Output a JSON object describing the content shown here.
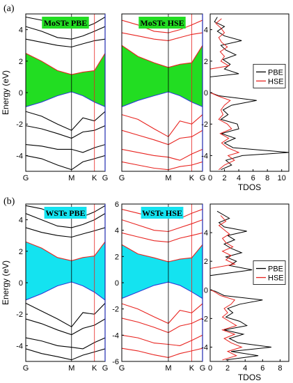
{
  "colors": {
    "pbe_line": "#000000",
    "hse_line": "#e8231f",
    "gap_fill_mo": "#22dd22",
    "gap_fill_w": "#14e3f0",
    "vbm_line": "#2a3ad8",
    "axis_blue": "#1e2ab0",
    "label_box_mo": "#22dd22",
    "label_box_w": "#14e3f0"
  },
  "icons": {
    "legend_pbe": "line-swatch-black",
    "legend_hse": "line-swatch-red"
  },
  "chart_data": [
    {
      "panel": "(a)",
      "type": "line",
      "subtype": "band-structure",
      "label_box": "MoSTe PBE",
      "functional": "PBE",
      "ylabel": "Energy (eV)",
      "ylim": [
        -5,
        5
      ],
      "yticks": [
        "-4",
        "-2",
        "0",
        "2",
        "4"
      ],
      "kpoints": [
        "G",
        "M",
        "K",
        "G"
      ],
      "kpoint_positions": [
        0,
        0.577,
        0.866,
        1.0
      ],
      "gap": {
        "vbm": 0.0,
        "cbm": 1.1,
        "filled": true,
        "fill_color_key": "gap_fill_mo"
      },
      "series": [
        {
          "values": [
            -0.9,
            -0.6,
            -0.2,
            0.05,
            -0.2,
            -0.6,
            -0.9
          ],
          "role": "valence-top"
        },
        {
          "values": [
            2.5,
            2.0,
            1.4,
            1.15,
            1.3,
            1.4,
            2.5
          ],
          "role": "conduction-bottom"
        },
        {
          "values": [
            -1.2,
            -1.5,
            -2.0,
            -2.4,
            -1.6,
            -1.8,
            -1.2
          ]
        },
        {
          "values": [
            -2.1,
            -2.3,
            -2.6,
            -2.9,
            -2.5,
            -2.4,
            -2.1
          ]
        },
        {
          "values": [
            -3.3,
            -3.4,
            -3.6,
            -3.6,
            -3.8,
            -3.5,
            -3.3
          ]
        },
        {
          "values": [
            -4.0,
            -4.2,
            -4.6,
            -4.9,
            -4.4,
            -4.2,
            -4.0
          ]
        },
        {
          "values": [
            3.4,
            3.2,
            3.0,
            2.9,
            3.1,
            3.3,
            3.4
          ]
        },
        {
          "values": [
            4.2,
            3.9,
            3.5,
            3.4,
            3.6,
            3.9,
            4.2
          ]
        },
        {
          "values": [
            4.8,
            4.6,
            4.2,
            4.3,
            4.1,
            4.4,
            4.8
          ]
        }
      ],
      "x": [
        0,
        0.2,
        0.4,
        0.577,
        0.72,
        0.866,
        1.0
      ]
    },
    {
      "panel": "(a)",
      "type": "line",
      "subtype": "band-structure",
      "label_box": "MoSTe HSE",
      "functional": "HSE",
      "ylim": [
        -5,
        5
      ],
      "kpoints": [
        "G",
        "M",
        "K",
        "G"
      ],
      "kpoint_positions": [
        0,
        0.577,
        0.866,
        1.0
      ],
      "gap": {
        "vbm": 0.0,
        "cbm": 1.6,
        "filled": true,
        "fill_color_key": "gap_fill_mo"
      },
      "series": [
        {
          "values": [
            -0.9,
            -0.5,
            -0.2,
            0.05,
            -0.2,
            -0.6,
            -0.9
          ],
          "role": "valence-top"
        },
        {
          "values": [
            3.0,
            2.3,
            1.9,
            1.6,
            1.8,
            1.9,
            3.0
          ],
          "role": "conduction-bottom"
        },
        {
          "values": [
            -1.4,
            -1.7,
            -2.3,
            -2.8,
            -1.8,
            -2.0,
            -1.4
          ]
        },
        {
          "values": [
            -2.4,
            -2.7,
            -3.0,
            -3.3,
            -2.9,
            -2.8,
            -2.4
          ]
        },
        {
          "values": [
            -3.6,
            -3.8,
            -4.0,
            -4.1,
            -4.3,
            -3.9,
            -3.6
          ]
        },
        {
          "values": [
            -4.4,
            -4.6,
            -4.8,
            -4.9,
            -4.7,
            -4.6,
            -4.4
          ]
        },
        {
          "values": [
            3.8,
            3.6,
            3.4,
            3.3,
            3.5,
            3.7,
            3.8
          ]
        },
        {
          "values": [
            4.6,
            4.3,
            3.9,
            3.8,
            4.0,
            4.3,
            4.6
          ]
        }
      ],
      "x": [
        0,
        0.2,
        0.4,
        0.577,
        0.72,
        0.866,
        1.0
      ]
    },
    {
      "panel": "(a)",
      "type": "line",
      "subtype": "density-of-states",
      "xlabel": "TDOS",
      "xlim": [
        0,
        11
      ],
      "xticks": [
        "0",
        "2",
        "4",
        "6",
        "8",
        "10"
      ],
      "ylim": [
        -5,
        5
      ],
      "legend": {
        "entries": [
          "PBE",
          "HSE"
        ],
        "placement": "right"
      },
      "series": [
        {
          "name": "PBE",
          "color_key": "pbe_line",
          "energy": [
            -4.9,
            -4.6,
            -4.3,
            -4.0,
            -3.8,
            -3.5,
            -3.2,
            -2.9,
            -2.6,
            -2.3,
            -2.0,
            -1.7,
            -1.4,
            -1.1,
            -0.8,
            -0.5,
            -0.2,
            0.0,
            0.5,
            1.0,
            1.2,
            1.5,
            1.8,
            2.1,
            2.4,
            2.7,
            3.0,
            3.3,
            3.6,
            3.9,
            4.2,
            4.5,
            4.8
          ],
          "values": [
            1.5,
            3.0,
            2.2,
            4.5,
            11.0,
            3.2,
            2.0,
            3.5,
            1.6,
            4.0,
            3.8,
            1.5,
            2.5,
            1.8,
            3.0,
            6.5,
            1.2,
            0.0,
            0.0,
            0.0,
            4.0,
            2.0,
            2.8,
            1.8,
            3.6,
            2.2,
            1.5,
            4.4,
            2.0,
            1.0,
            2.0,
            0.6,
            1.0
          ]
        },
        {
          "name": "HSE",
          "color_key": "hse_line",
          "energy": [
            -4.9,
            -4.6,
            -4.3,
            -4.0,
            -3.8,
            -3.5,
            -3.2,
            -2.9,
            -2.6,
            -2.3,
            -2.0,
            -1.7,
            -1.4,
            -1.1,
            -0.8,
            -0.5,
            -0.2,
            0.0,
            0.5,
            1.0,
            1.5,
            1.7,
            2.0,
            2.3,
            2.6,
            2.9,
            3.2,
            3.5,
            3.8,
            4.1,
            4.4,
            4.7
          ],
          "values": [
            1.2,
            2.0,
            3.4,
            2.5,
            4.0,
            2.4,
            1.6,
            2.6,
            1.4,
            3.0,
            2.4,
            1.2,
            1.8,
            1.5,
            2.0,
            2.8,
            1.0,
            0.0,
            0.0,
            0.0,
            0.0,
            2.6,
            1.5,
            2.0,
            1.4,
            2.4,
            1.6,
            1.2,
            2.0,
            1.5,
            0.8,
            1.6
          ]
        }
      ]
    },
    {
      "panel": "(b)",
      "type": "line",
      "subtype": "band-structure",
      "label_box": "WSTe PBE",
      "functional": "PBE",
      "ylabel": "Energy (eV)",
      "ylim": [
        -5,
        5
      ],
      "yticks": [
        "-4",
        "-2",
        "0",
        "2",
        "4"
      ],
      "kpoints": [
        "G",
        "M",
        "K",
        "G"
      ],
      "kpoint_positions": [
        0,
        0.577,
        0.866,
        1.0
      ],
      "gap": {
        "vbm": 0.0,
        "cbm": 1.4,
        "filled": true,
        "fill_color_key": "gap_fill_w"
      },
      "series": [
        {
          "values": [
            -1.1,
            -0.7,
            -0.2,
            0.05,
            -0.2,
            -0.6,
            -1.1
          ],
          "role": "valence-top"
        },
        {
          "values": [
            2.6,
            2.2,
            1.6,
            1.4,
            1.6,
            1.7,
            2.6
          ],
          "role": "conduction-bottom"
        },
        {
          "values": [
            -1.3,
            -1.8,
            -2.3,
            -2.8,
            -1.9,
            -2.0,
            -1.3
          ]
        },
        {
          "values": [
            -2.3,
            -2.6,
            -3.0,
            -3.3,
            -2.9,
            -2.7,
            -2.3
          ]
        },
        {
          "values": [
            -3.5,
            -3.7,
            -4.0,
            -4.1,
            -4.2,
            -3.8,
            -3.5
          ]
        },
        {
          "values": [
            -4.2,
            -4.5,
            -4.7,
            -4.9,
            -4.6,
            -4.4,
            -4.2
          ]
        },
        {
          "values": [
            3.5,
            3.2,
            3.0,
            2.9,
            3.1,
            3.3,
            3.5
          ]
        },
        {
          "values": [
            4.4,
            4.0,
            3.6,
            3.5,
            3.7,
            4.0,
            4.4
          ]
        },
        {
          "values": [
            4.9,
            4.7,
            4.3,
            4.4,
            4.2,
            4.5,
            4.9
          ]
        }
      ],
      "x": [
        0,
        0.2,
        0.4,
        0.577,
        0.72,
        0.866,
        1.0
      ]
    },
    {
      "panel": "(b)",
      "type": "line",
      "subtype": "band-structure",
      "label_box": "WSTe HSE",
      "functional": "HSE",
      "ylim": [
        -6,
        6
      ],
      "yticks": [
        "-6",
        "-4",
        "-2",
        "0",
        "2",
        "4",
        "6"
      ],
      "kpoints": [
        "G",
        "M",
        "K",
        "G"
      ],
      "kpoint_positions": [
        0,
        0.577,
        0.866,
        1.0
      ],
      "gap": {
        "vbm": 0.0,
        "cbm": 1.6,
        "filled": true,
        "fill_color_key": "gap_fill_w"
      },
      "series": [
        {
          "values": [
            -1.2,
            -0.7,
            -0.2,
            0.05,
            -0.2,
            -0.7,
            -1.2
          ],
          "role": "valence-top"
        },
        {
          "values": [
            2.9,
            2.2,
            1.9,
            1.6,
            1.8,
            1.9,
            2.9
          ],
          "role": "conduction-bottom"
        },
        {
          "values": [
            -1.6,
            -2.0,
            -2.6,
            -3.1,
            -2.1,
            -2.3,
            -1.6
          ]
        },
        {
          "values": [
            -2.7,
            -3.0,
            -3.4,
            -3.8,
            -3.3,
            -3.1,
            -2.7
          ]
        },
        {
          "values": [
            -4.0,
            -4.2,
            -4.6,
            -4.7,
            -4.8,
            -4.4,
            -4.0
          ]
        },
        {
          "values": [
            -5.0,
            -5.2,
            -5.5,
            -5.7,
            -5.4,
            -5.2,
            -5.0
          ]
        },
        {
          "values": [
            3.8,
            3.5,
            3.2,
            3.1,
            3.4,
            3.6,
            3.8
          ]
        },
        {
          "values": [
            4.8,
            4.4,
            4.0,
            3.9,
            4.2,
            4.5,
            4.8
          ]
        },
        {
          "values": [
            5.6,
            5.3,
            5.0,
            5.1,
            4.9,
            5.3,
            5.6
          ]
        }
      ],
      "x": [
        0,
        0.2,
        0.4,
        0.577,
        0.72,
        0.866,
        1.0
      ]
    },
    {
      "panel": "(b)",
      "type": "line",
      "subtype": "density-of-states",
      "xlabel": "TDOS",
      "xlim": [
        0,
        9
      ],
      "xticks": [
        "0",
        "2",
        "4",
        "6",
        "8"
      ],
      "ylim": [
        -5,
        6
      ],
      "legend": {
        "entries": [
          "PBE",
          "HSE"
        ],
        "placement": "right"
      },
      "series": [
        {
          "name": "PBE",
          "color_key": "pbe_line",
          "energy": [
            -4.9,
            -4.6,
            -4.3,
            -4.0,
            -3.7,
            -3.4,
            -3.1,
            -2.8,
            -2.5,
            -2.2,
            -1.9,
            -1.6,
            -1.3,
            -1.0,
            -0.7,
            -0.4,
            -0.1,
            0.0,
            0.5,
            1.0,
            1.4,
            1.7,
            2.0,
            2.3,
            2.6,
            2.9,
            3.2,
            3.5,
            3.8,
            4.1,
            4.4,
            4.7,
            5.0,
            5.5
          ],
          "values": [
            1.8,
            5.5,
            2.4,
            7.0,
            3.2,
            2.2,
            3.8,
            1.6,
            4.2,
            3.4,
            1.8,
            2.6,
            2.0,
            3.4,
            6.0,
            1.6,
            0.6,
            0.0,
            0.0,
            0.0,
            4.8,
            2.2,
            3.0,
            1.8,
            3.6,
            2.4,
            1.6,
            2.8,
            2.0,
            4.2,
            1.6,
            1.0,
            2.2,
            0.8
          ]
        },
        {
          "name": "HSE",
          "color_key": "hse_line",
          "energy": [
            -4.9,
            -4.6,
            -4.3,
            -4.0,
            -3.7,
            -3.4,
            -3.1,
            -2.8,
            -2.5,
            -2.2,
            -1.9,
            -1.6,
            -1.3,
            -1.0,
            -0.7,
            -0.4,
            -0.1,
            0.0,
            0.5,
            1.0,
            1.5,
            1.8,
            2.1,
            2.4,
            2.7,
            3.0,
            3.3,
            3.6,
            3.9,
            4.2,
            4.5,
            4.8,
            5.2
          ],
          "values": [
            1.4,
            3.0,
            2.0,
            3.6,
            2.4,
            1.6,
            2.8,
            1.4,
            3.0,
            2.2,
            1.4,
            2.0,
            1.6,
            2.4,
            2.8,
            1.2,
            0.4,
            0.0,
            0.0,
            0.0,
            0.0,
            2.8,
            1.8,
            2.4,
            1.4,
            2.6,
            1.8,
            1.4,
            2.2,
            1.6,
            1.0,
            1.8,
            1.2
          ]
        }
      ]
    }
  ],
  "panels": {
    "a": {
      "tag": "(a)"
    },
    "b": {
      "tag": "(b)"
    }
  }
}
